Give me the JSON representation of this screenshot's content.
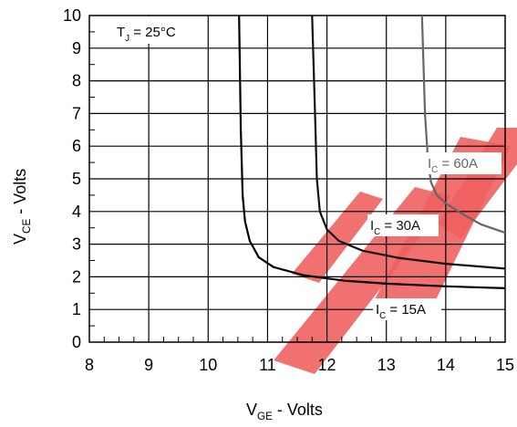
{
  "chart_data": {
    "type": "line",
    "title": "",
    "xlabel": {
      "main": "V",
      "sub": "GE",
      "suffix": " - Volts"
    },
    "ylabel": {
      "main": "V",
      "sub": "CE",
      "suffix": " - Volts"
    },
    "xlim": [
      8,
      15
    ],
    "ylim": [
      0,
      10
    ],
    "x_ticks": [
      "8",
      "9",
      "10",
      "11",
      "12",
      "13",
      "14",
      "15"
    ],
    "y_ticks": [
      "0",
      "1",
      "2",
      "3",
      "4",
      "5",
      "6",
      "7",
      "8",
      "9",
      "10"
    ],
    "grid": true,
    "condition": {
      "main": "T",
      "sub": "J",
      "suffix": " = 25°C"
    },
    "series": [
      {
        "name": {
          "main": "I",
          "sub": "C",
          "suffix": " = 15A"
        },
        "color": "#000000",
        "points": [
          [
            10.52,
            10
          ],
          [
            10.55,
            6.5
          ],
          [
            10.58,
            4.5
          ],
          [
            10.62,
            3.7
          ],
          [
            10.7,
            3.1
          ],
          [
            10.85,
            2.6
          ],
          [
            11.1,
            2.3
          ],
          [
            11.6,
            2.05
          ],
          [
            12.3,
            1.88
          ],
          [
            13.0,
            1.79
          ],
          [
            14.0,
            1.71
          ],
          [
            15.0,
            1.65
          ]
        ]
      },
      {
        "name": {
          "main": "I",
          "sub": "C",
          "suffix": " = 30A"
        },
        "color": "#111111",
        "points": [
          [
            11.75,
            10
          ],
          [
            11.8,
            7.0
          ],
          [
            11.83,
            5.0
          ],
          [
            11.88,
            4.0
          ],
          [
            12.0,
            3.45
          ],
          [
            12.2,
            3.1
          ],
          [
            12.6,
            2.8
          ],
          [
            13.2,
            2.58
          ],
          [
            14.0,
            2.4
          ],
          [
            15.0,
            2.25
          ]
        ]
      },
      {
        "name": {
          "main": "I",
          "sub": "C",
          "suffix": " = 60A"
        },
        "color": "#666666",
        "points": [
          [
            13.6,
            10
          ],
          [
            13.65,
            7.0
          ],
          [
            13.7,
            5.6
          ],
          [
            13.75,
            4.9
          ],
          [
            13.85,
            4.5
          ],
          [
            14.0,
            4.25
          ],
          [
            14.3,
            3.9
          ],
          [
            14.6,
            3.6
          ],
          [
            15.0,
            3.35
          ]
        ]
      }
    ]
  },
  "watermark": {
    "letters": [
      "E",
      "S",
      "P"
    ],
    "color": "#f06060"
  }
}
